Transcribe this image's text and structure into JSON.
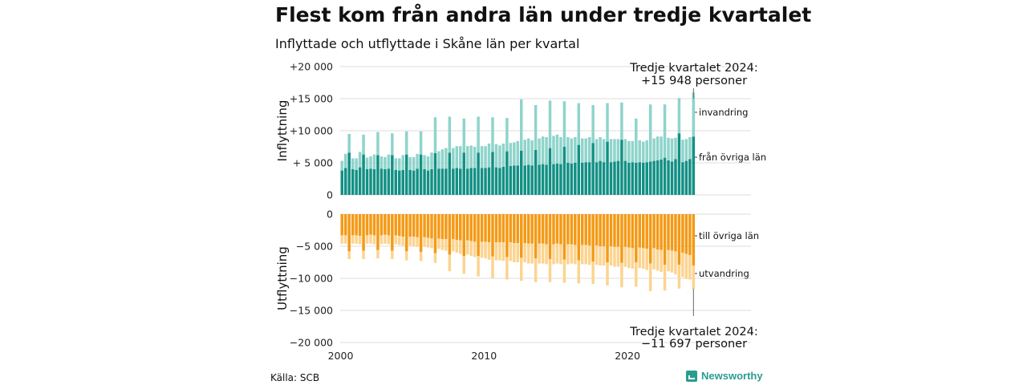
{
  "header": {
    "title": "Flest kom från andra län under tredje kvartalet",
    "subtitle": "Inflyttade och utflyttade i Skåne län per kvartal"
  },
  "footer": {
    "source": "Källa: SCB",
    "brand": "Newsworthy"
  },
  "colors": {
    "inland_in": "#139085",
    "abroad_in": "#8fd4cb",
    "inland_out": "#f49a16",
    "abroad_out": "#fcd490",
    "grid": "#dddddd"
  },
  "chart_data": {
    "type": "bar",
    "stacked": true,
    "x_start": 2000,
    "periods_per_year": 4,
    "x_ticks": [
      "2000",
      "2010",
      "2020"
    ],
    "annotations": {
      "top": "Tredje kvartalet 2024:\n+15 948 personer",
      "bottom": "Tredje kvartalet 2024:\n−11 697 personer"
    },
    "panels": [
      {
        "ylabel": "Inflyttning",
        "ylim": [
          0,
          20000
        ],
        "y_ticks": [
          0,
          5000,
          10000,
          15000,
          20000
        ],
        "y_tick_labels": [
          "0",
          "+ 5 000",
          "+10 000",
          "+15 000",
          "+20 000"
        ],
        "series": [
          {
            "name": "från övriga län",
            "values": [
              3800,
              4200,
              6600,
              4000,
              3900,
              4300,
              6300,
              4000,
              4100,
              4000,
              6200,
              4100,
              4000,
              4100,
              6200,
              3900,
              3800,
              3900,
              6300,
              3900,
              3800,
              4100,
              6300,
              4000,
              3800,
              4000,
              6500,
              4100,
              4100,
              4100,
              6600,
              4100,
              4200,
              4100,
              6600,
              4100,
              4200,
              4200,
              6600,
              4200,
              4200,
              4300,
              6700,
              4300,
              4200,
              4400,
              6800,
              4500,
              4600,
              4600,
              6900,
              4600,
              4700,
              4600,
              7000,
              4700,
              4800,
              4700,
              7300,
              4800,
              4900,
              4800,
              7500,
              5000,
              4900,
              5000,
              7800,
              5000,
              5100,
              5100,
              8100,
              5100,
              5300,
              5100,
              8300,
              5100,
              5200,
              5300,
              8600,
              5300,
              5000,
              5100,
              5000,
              5100,
              5000,
              5100,
              5200,
              5300,
              5400,
              5500,
              5800,
              5400,
              5200,
              5600,
              9600,
              5100,
              5300,
              5600,
              9100
            ]
          },
          {
            "name": "invandring",
            "values": [
              1500,
              2200,
              2900,
              1700,
              1800,
              2400,
              3100,
              1800,
              1900,
              2300,
              3600,
              1900,
              1900,
              2200,
              3400,
              1800,
              1900,
              2300,
              3600,
              2000,
              2100,
              2300,
              3600,
              2200,
              2200,
              2600,
              5600,
              2700,
              3000,
              3200,
              5600,
              3200,
              3400,
              3500,
              5300,
              3500,
              3500,
              3300,
              5600,
              3400,
              3400,
              3700,
              5400,
              3600,
              3500,
              3600,
              5200,
              3600,
              3600,
              3800,
              8000,
              4000,
              4100,
              3900,
              7000,
              4100,
              4300,
              4300,
              7400,
              4400,
              4500,
              4200,
              7100,
              4000,
              3900,
              4000,
              6500,
              3800,
              3700,
              3900,
              5900,
              3600,
              3700,
              3600,
              6000,
              3600,
              3500,
              3400,
              5800,
              3400,
              3400,
              3300,
              6900,
              3400,
              3300,
              3400,
              8900,
              3500,
              3700,
              3600,
              8300,
              3500,
              3600,
              3300,
              5500,
              3500,
              3400,
              3400,
              6848
            ]
          }
        ],
        "series_labels": [
          "invandring",
          "från övriga län"
        ]
      },
      {
        "ylabel": "Utflyttning",
        "ylim": [
          -20000,
          0
        ],
        "y_ticks": [
          0,
          -5000,
          -10000,
          -15000,
          -20000
        ],
        "y_tick_labels": [
          "0",
          "−5 000",
          "−10 000",
          "−15 000",
          "−20 000"
        ],
        "series": [
          {
            "name": "till övriga län",
            "values": [
              -3300,
              -3300,
              -5800,
              -3300,
              -3300,
              -3400,
              -5700,
              -3300,
              -3200,
              -3300,
              -5600,
              -3300,
              -3200,
              -3300,
              -5700,
              -3300,
              -3400,
              -3500,
              -5800,
              -3500,
              -3500,
              -3600,
              -5900,
              -3600,
              -3700,
              -3800,
              -6100,
              -3800,
              -3900,
              -3900,
              -6300,
              -3900,
              -4000,
              -4100,
              -6500,
              -4100,
              -4200,
              -4300,
              -6500,
              -4300,
              -4300,
              -4400,
              -6600,
              -4400,
              -4400,
              -4400,
              -6700,
              -4400,
              -4500,
              -4500,
              -6800,
              -4500,
              -4600,
              -4600,
              -6900,
              -4600,
              -4600,
              -4700,
              -7000,
              -4700,
              -4600,
              -4700,
              -7100,
              -4700,
              -4700,
              -4800,
              -7200,
              -4800,
              -4800,
              -4900,
              -7400,
              -4900,
              -5000,
              -5000,
              -7500,
              -5000,
              -5100,
              -5100,
              -7600,
              -5100,
              -5200,
              -5300,
              -7500,
              -5200,
              -5300,
              -5400,
              -7700,
              -5300,
              -5500,
              -5600,
              -7900,
              -5600,
              -5700,
              -5800,
              -7900,
              -6000,
              -6200,
              -6400,
              -8000
            ]
          },
          {
            "name": "utvandring",
            "values": [
              -1300,
              -1300,
              -1200,
              -1300,
              -1300,
              -1300,
              -1300,
              -1300,
              -1400,
              -1400,
              -1300,
              -1400,
              -1400,
              -1400,
              -1300,
              -1400,
              -1400,
              -1400,
              -1400,
              -1400,
              -1500,
              -1500,
              -1400,
              -1500,
              -1500,
              -1500,
              -1500,
              -1600,
              -1700,
              -1800,
              -2600,
              -1900,
              -2000,
              -2100,
              -2800,
              -2200,
              -2300,
              -2400,
              -3200,
              -2500,
              -2600,
              -2700,
              -3400,
              -2800,
              -2800,
              -2900,
              -3500,
              -2900,
              -3000,
              -3000,
              -3600,
              -3000,
              -3100,
              -3100,
              -3700,
              -3100,
              -3100,
              -3100,
              -3600,
              -3100,
              -3100,
              -3100,
              -3600,
              -3100,
              -3000,
              -3000,
              -3600,
              -3000,
              -3000,
              -3000,
              -3500,
              -3000,
              -3000,
              -3000,
              -3600,
              -3000,
              -3100,
              -3100,
              -3800,
              -3100,
              -3200,
              -3200,
              -3800,
              -3200,
              -3200,
              -3300,
              -4300,
              -3300,
              -3300,
              -3400,
              -4000,
              -3300,
              -3400,
              -3600,
              -3700,
              -3800,
              -3900,
              -3800,
              -3697
            ]
          }
        ],
        "series_labels": [
          "till övriga län",
          "utvandring"
        ]
      }
    ]
  }
}
